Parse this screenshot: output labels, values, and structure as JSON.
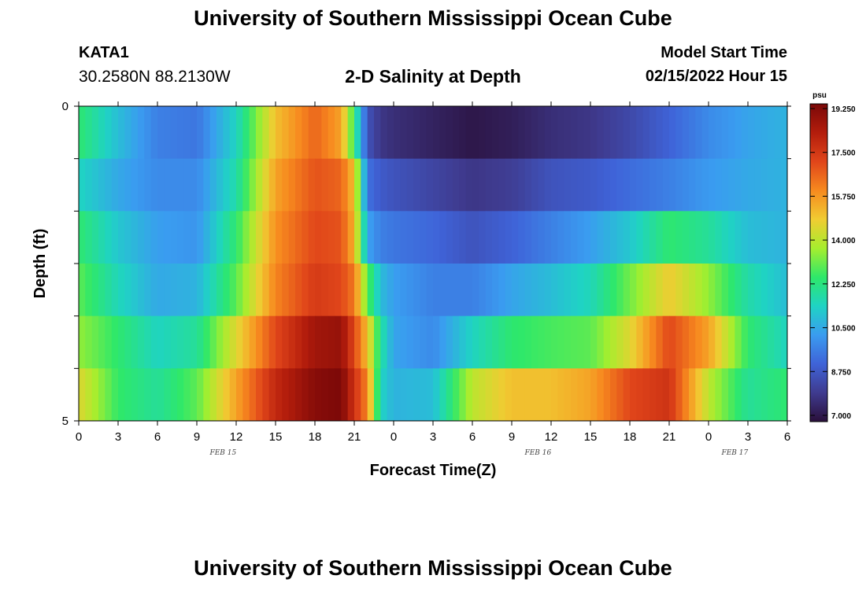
{
  "header": {
    "title": "University of Southern Mississippi Ocean Cube",
    "station_name": "KATA1",
    "coordinates": "30.2580N  88.2130W",
    "subtitle": "2-D Salinity at Depth",
    "model_start_label": "Model Start Time",
    "model_start_value": "02/15/2022 Hour 15"
  },
  "footer": {
    "title": "University of Southern Mississippi Ocean Cube"
  },
  "chart_data": {
    "type": "heatmap",
    "title": "2-D Salinity at Depth",
    "xlabel": "Forecast Time(Z)",
    "ylabel": "Depth (ft)",
    "x_tick_labels": [
      "0",
      "3",
      "6",
      "9",
      "12",
      "15",
      "18",
      "21",
      "0",
      "3",
      "6",
      "9",
      "12",
      "15",
      "18",
      "21",
      "0",
      "3",
      "6"
    ],
    "date_labels": [
      {
        "label": "FEB 15",
        "hour": 11
      },
      {
        "label": "FEB 16",
        "hour": 35
      },
      {
        "label": "FEB 17",
        "hour": 50
      }
    ],
    "x_range_hours": [
      0,
      54
    ],
    "y_tick_labels": [
      "0",
      "5"
    ],
    "y_range": [
      0,
      5
    ],
    "colorbar": {
      "unit": "psu",
      "range": [
        7.0,
        19.25
      ],
      "tick_labels": [
        "19.250",
        "17.500",
        "15.750",
        "14.000",
        "12.250",
        "10.500",
        "8.750",
        "7.000"
      ],
      "colors": [
        "#2a0f3a",
        "#3f3b8f",
        "#3f63d8",
        "#3a9cf0",
        "#1fd3c4",
        "#2ee86a",
        "#a6ee2e",
        "#f0cc32",
        "#f78a1f",
        "#e0451a",
        "#b31d0c",
        "#7a0808"
      ]
    },
    "time_hours": [
      0,
      3,
      6,
      9,
      12,
      15,
      18,
      20,
      21,
      22,
      23,
      24,
      27,
      30,
      33,
      36,
      39,
      42,
      45,
      48,
      51,
      54
    ],
    "depth_rows": [
      {
        "depth": "0",
        "salinity": [
          12.5,
          11.0,
          9.8,
          9.6,
          11.5,
          15.0,
          16.5,
          15.5,
          12.5,
          8.8,
          8.0,
          7.8,
          7.5,
          7.2,
          7.4,
          7.8,
          8.0,
          8.5,
          9.2,
          10.0,
          10.5,
          10.8
        ]
      },
      {
        "depth": "1",
        "salinity": [
          11.5,
          10.6,
          10.0,
          10.0,
          11.8,
          15.5,
          16.8,
          16.5,
          15.0,
          9.5,
          9.0,
          8.8,
          8.4,
          8.0,
          8.2,
          8.8,
          9.0,
          9.4,
          9.8,
          10.3,
          10.6,
          10.8
        ]
      },
      {
        "depth": "2",
        "salinity": [
          12.5,
          11.2,
          10.4,
          10.2,
          12.5,
          15.8,
          17.0,
          16.8,
          15.2,
          10.5,
          9.8,
          9.6,
          9.3,
          8.8,
          9.2,
          9.8,
          10.4,
          11.2,
          12.5,
          12.0,
          11.0,
          10.8
        ]
      },
      {
        "depth": "3",
        "salinity": [
          13.0,
          11.6,
          10.6,
          10.8,
          13.0,
          16.0,
          17.3,
          17.0,
          16.2,
          13.0,
          11.0,
          10.4,
          9.8,
          9.8,
          10.5,
          11.0,
          11.6,
          13.2,
          14.8,
          13.5,
          11.8,
          11.0
        ]
      },
      {
        "depth": "4",
        "salinity": [
          13.5,
          12.5,
          11.5,
          12.0,
          14.5,
          17.0,
          18.5,
          18.7,
          17.0,
          15.0,
          12.0,
          10.5,
          10.0,
          11.5,
          12.5,
          12.8,
          13.0,
          14.5,
          17.0,
          15.5,
          12.5,
          11.5
        ]
      },
      {
        "depth": "5",
        "salinity": [
          14.5,
          12.6,
          12.0,
          13.0,
          15.5,
          17.8,
          19.0,
          19.2,
          17.5,
          16.0,
          11.5,
          10.8,
          11.0,
          14.0,
          15.0,
          15.0,
          15.5,
          17.0,
          17.5,
          14.0,
          12.0,
          12.5
        ]
      }
    ]
  }
}
